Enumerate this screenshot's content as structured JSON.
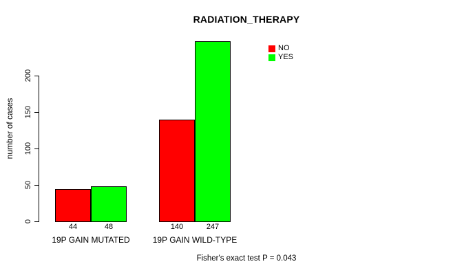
{
  "title": "RADIATION_THERAPY",
  "ylabel": "number of cases",
  "footer": "Fisher's exact test P = 0.043",
  "legend": [
    {
      "label": "NO",
      "color": "#ff0000"
    },
    {
      "label": "YES",
      "color": "#00ff00"
    }
  ],
  "chart_data": {
    "type": "bar",
    "title": "RADIATION_THERAPY",
    "ylabel": "number of cases",
    "xlabel": "",
    "categories": [
      "19P GAIN MUTATED",
      "19P GAIN WILD-TYPE"
    ],
    "series": [
      {
        "name": "NO",
        "color": "#ff0000",
        "values": [
          44,
          140
        ]
      },
      {
        "name": "YES",
        "color": "#00ff00",
        "values": [
          48,
          247
        ]
      }
    ],
    "bar_value_labels": [
      [
        "44",
        "48"
      ],
      [
        "140",
        "247"
      ]
    ],
    "yticks": [
      0,
      50,
      100,
      150,
      200
    ],
    "ylim": [
      0,
      251
    ],
    "grid": false,
    "legend_position": "top-right",
    "annotation": "Fisher's exact test P = 0.043"
  }
}
